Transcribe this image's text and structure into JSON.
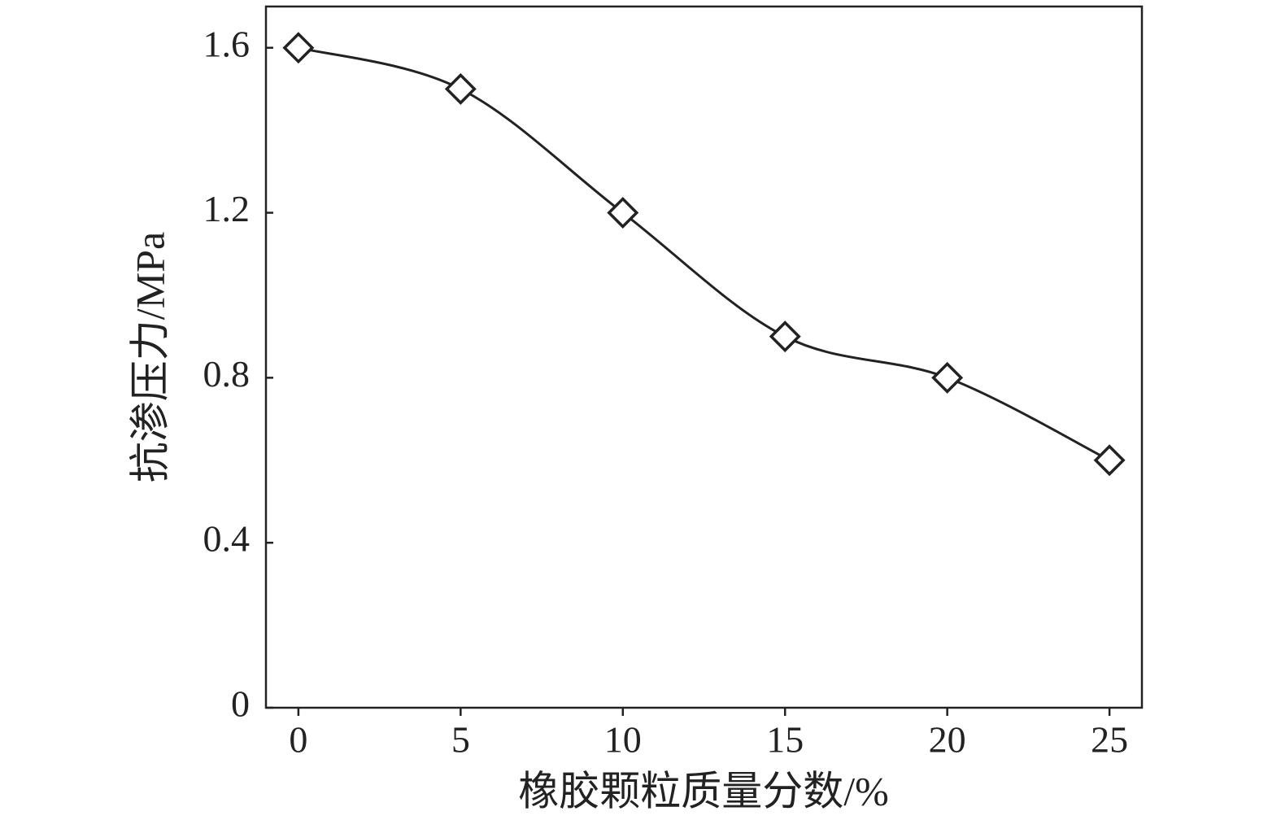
{
  "chart_data": {
    "type": "line",
    "x_label": "橡胶颗粒质量分数/%",
    "y_label": "抗渗压力/MPa",
    "x": [
      0,
      5,
      10,
      15,
      20,
      25
    ],
    "values": [
      1.6,
      1.5,
      1.2,
      0.9,
      0.8,
      0.6
    ],
    "color": "#222222",
    "marker": "diamond",
    "smooth": true,
    "xlim": [
      -1,
      26
    ],
    "xticks": [
      0,
      5,
      10,
      15,
      20,
      25
    ],
    "ylim": [
      0,
      1.7
    ],
    "yticks": [
      0,
      0.4,
      0.8,
      1.2,
      1.6
    ],
    "grid": false
  }
}
